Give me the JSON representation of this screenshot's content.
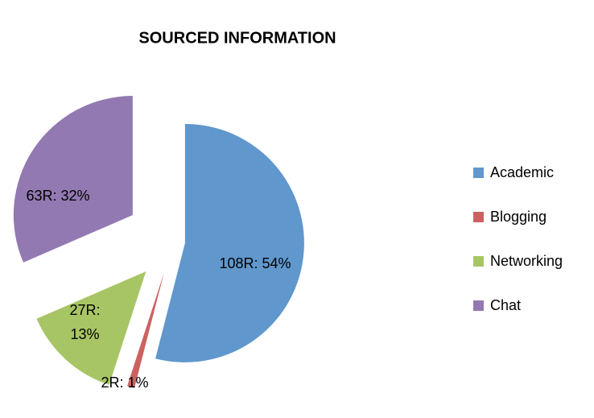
{
  "chart_data": {
    "type": "pie",
    "title": "SOURCED INFORMATION",
    "categories": [
      "Academic",
      "Blogging",
      "Networking",
      "Chat"
    ],
    "values": [
      108,
      2,
      27,
      63
    ],
    "value_labels": [
      "108R: 54%",
      "2R:  1%",
      "27R: 13%",
      "63R:  32%"
    ],
    "colors": [
      "#6097cc",
      "#cc6260",
      "#a8c565",
      "#9379b1"
    ],
    "legend": "right"
  }
}
